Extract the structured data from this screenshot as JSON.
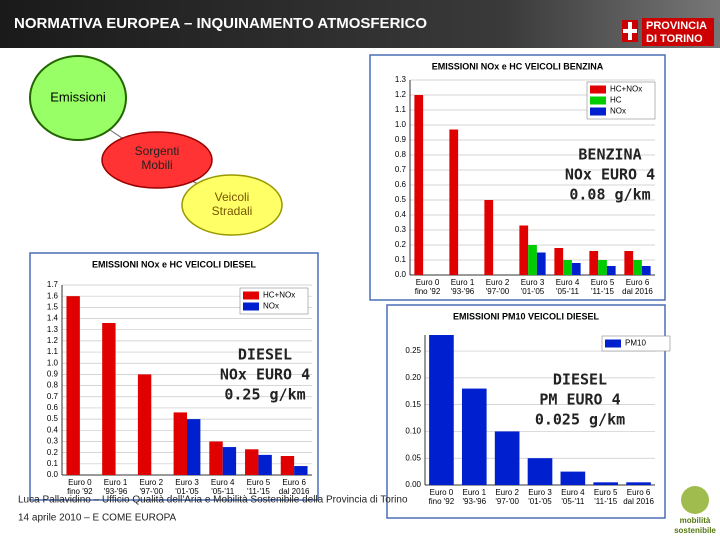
{
  "header": {
    "title": "NORMATIVA EUROPEA – INQUINAMENTO ATMOSFERICO",
    "logo": [
      "PROVINCIA",
      "DI TORINO"
    ]
  },
  "diagram": {
    "nodes": [
      {
        "lines": [
          "Emissioni"
        ]
      },
      {
        "lines": [
          "Sorgenti",
          "Mobili"
        ]
      },
      {
        "lines": [
          "Veicoli",
          "Stradali"
        ]
      }
    ]
  },
  "callouts": [
    {
      "lines": [
        "BENZINA",
        "NOx EURO 4",
        "0.08 g/km"
      ]
    },
    {
      "lines": [
        "DIESEL",
        "NOx EURO 4",
        "0.25 g/km"
      ]
    },
    {
      "lines": [
        "DIESEL",
        "PM EURO 4",
        "0.025 g/km"
      ]
    }
  ],
  "footer": {
    "author": "Luca Pallavidino – Ufficio Qualità dell'Aria e Mobilità Sostenibile della Provincia di Torino",
    "date": "14 aprile 2010 – E COME EUROPA",
    "logo": [
      "mobilità",
      "sostenibile"
    ]
  },
  "chart_data": [
    {
      "type": "bar",
      "title": "EMISSIONI NOx e HC VEICOLI BENZINA",
      "categories": [
        "Euro 0",
        "Euro 1",
        "Euro 2",
        "Euro 3",
        "Euro 4",
        "Euro 5",
        "Euro 6"
      ],
      "periods": [
        "fino '92",
        "'93-'96",
        "'97-'00",
        "'01-'05",
        "'05-'11",
        "'11-'15",
        "dal 2016"
      ],
      "series": [
        {
          "name": "HC+NOx",
          "color": "#e00000",
          "values": [
            1.2,
            0.97,
            0.5,
            0.33,
            0.18,
            0.16,
            0.16
          ]
        },
        {
          "name": "HC",
          "color": "#00cc00",
          "values": [
            null,
            null,
            null,
            0.2,
            0.1,
            0.1,
            0.1
          ]
        },
        {
          "name": "NOx",
          "color": "#0020d0",
          "values": [
            null,
            null,
            null,
            0.15,
            0.08,
            0.06,
            0.06
          ]
        }
      ],
      "ylim": [
        0,
        1.3
      ],
      "yticks": [
        {
          "value": 0,
          "label": "0.0"
        },
        0.1,
        0.2,
        0.3,
        0.4,
        0.5,
        0.6,
        0.7,
        0.8,
        0.9,
        {
          "value": 1,
          "label": "1.0"
        },
        1.1,
        1.2,
        1.3
      ],
      "grid": true
    },
    {
      "type": "bar",
      "title": "EMISSIONI NOx e HC VEICOLI DIESEL",
      "categories": [
        "Euro 0",
        "Euro 1",
        "Euro 2",
        "Euro 3",
        "Euro 4",
        "Euro 5",
        "Euro 6"
      ],
      "periods": [
        "fino '92",
        "'93-'96",
        "'97-'00",
        "'01-'05",
        "'05-'11",
        "'11-'15",
        "dal 2016"
      ],
      "series": [
        {
          "name": "HC+NOx",
          "color": "#e00000",
          "values": [
            1.6,
            1.36,
            0.9,
            0.56,
            0.3,
            0.23,
            0.17
          ]
        },
        {
          "name": "NOx",
          "color": "#0020d0",
          "values": [
            null,
            null,
            null,
            0.5,
            0.25,
            0.18,
            0.08
          ]
        }
      ],
      "ylim": [
        0,
        1.7
      ],
      "yticks": [
        {
          "value": 0,
          "label": "0.0"
        },
        0.1,
        0.2,
        0.3,
        0.4,
        0.5,
        0.6,
        0.7,
        0.8,
        0.9,
        {
          "value": 1,
          "label": "1.0"
        },
        1.1,
        1.2,
        1.3,
        1.4,
        1.5,
        1.6,
        1.7
      ],
      "grid": true
    },
    {
      "type": "bar",
      "title": "EMISSIONI PM10 VEICOLI DIESEL",
      "categories": [
        "Euro 0",
        "Euro 1",
        "Euro 2",
        "Euro 3",
        "Euro 4",
        "Euro 5",
        "Euro 6"
      ],
      "periods": [
        "fino '92",
        "'93-'96",
        "'97-'00",
        "'01-'05",
        "'05-'11",
        "'11-'15",
        "dal 2016"
      ],
      "series": [
        {
          "name": "PM10",
          "color": "#0020d0",
          "values": [
            0.28,
            0.18,
            0.1,
            0.05,
            0.025,
            0.005,
            0.005
          ]
        }
      ],
      "ylim": [
        0,
        0.28
      ],
      "yticks": [
        {
          "value": 0,
          "label": "0.00"
        },
        0.05,
        {
          "value": 0.1,
          "label": "0.10"
        },
        0.15,
        {
          "value": 0.2,
          "label": "0.20"
        },
        0.25
      ],
      "grid": true
    }
  ]
}
